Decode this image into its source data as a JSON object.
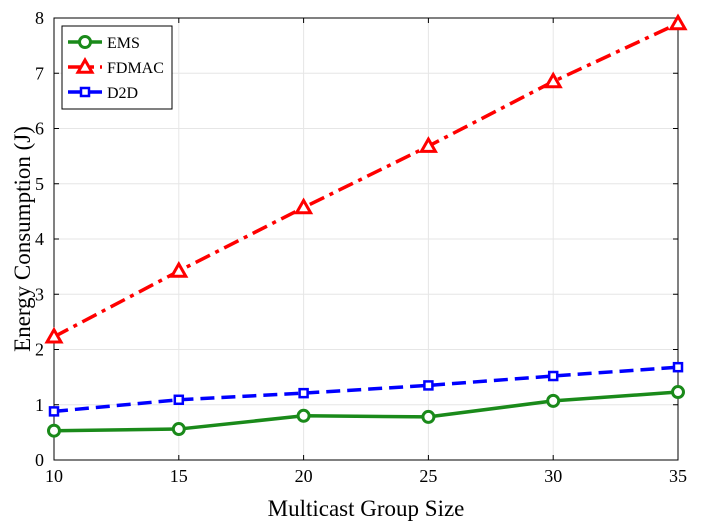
{
  "chart_data": {
    "type": "line",
    "title": "",
    "xlabel": "Multicast Group Size",
    "ylabel": "Energy Consumption (J)",
    "x": [
      10,
      15,
      20,
      25,
      30,
      35
    ],
    "xlim": [
      10,
      35
    ],
    "ylim": [
      0,
      8
    ],
    "xticks": [
      "10",
      "15",
      "20",
      "25",
      "30",
      "35"
    ],
    "yticks": [
      "0",
      "1",
      "2",
      "3",
      "4",
      "5",
      "6",
      "7",
      "8"
    ],
    "grid": true,
    "legend_position": "top-left",
    "series": [
      {
        "name": "EMS",
        "values": [
          0.53,
          0.56,
          0.8,
          0.78,
          1.07,
          1.23
        ],
        "color": "#1a8a1a",
        "marker": "circle",
        "linestyle": "solid"
      },
      {
        "name": "FDMAC",
        "values": [
          2.23,
          3.42,
          4.57,
          5.68,
          6.85,
          7.9
        ],
        "color": "#ff0000",
        "marker": "triangle",
        "linestyle": "dashdot"
      },
      {
        "name": "D2D",
        "values": [
          0.88,
          1.09,
          1.21,
          1.35,
          1.52,
          1.68
        ],
        "color": "#0000ff",
        "marker": "square",
        "linestyle": "dashed"
      }
    ]
  }
}
